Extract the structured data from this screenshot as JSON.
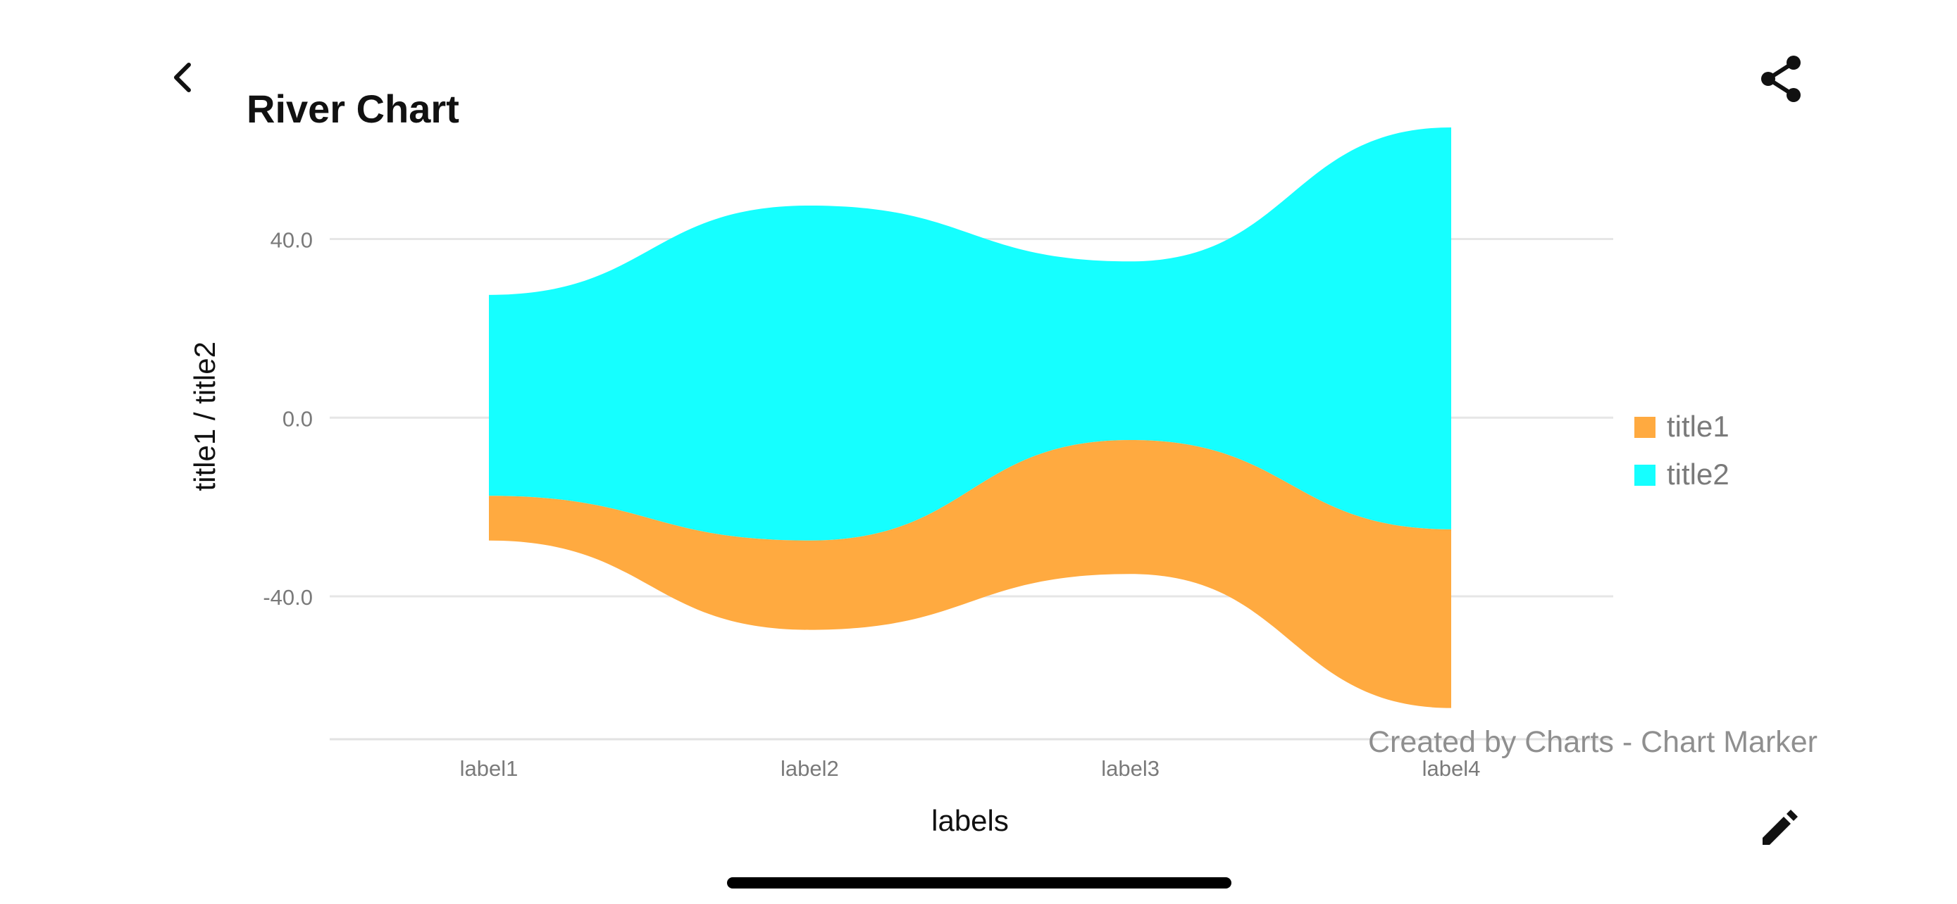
{
  "header": {
    "title": "River Chart"
  },
  "icons": {
    "back": "chevron-left-icon",
    "share": "share-icon",
    "edit": "pencil-icon"
  },
  "watermark": "Created by Charts - Chart Marker",
  "chart_data": {
    "type": "area",
    "subtype": "stream",
    "categories": [
      "label1",
      "label2",
      "label3",
      "label4"
    ],
    "xlabel": "labels",
    "ylabel": "title1 / title2",
    "yticks": [
      -40,
      0,
      40
    ],
    "ytick_labels": [
      "-40.0",
      "0.0",
      "40.0"
    ],
    "ylim": [
      -72,
      62
    ],
    "grid": true,
    "legend_position": "right",
    "series": [
      {
        "name": "title1",
        "color": "#FFAA40",
        "values": [
          10,
          20,
          30,
          40
        ]
      },
      {
        "name": "title2",
        "color": "#15FFFF",
        "values": [
          45,
          75,
          40,
          90
        ]
      }
    ]
  }
}
